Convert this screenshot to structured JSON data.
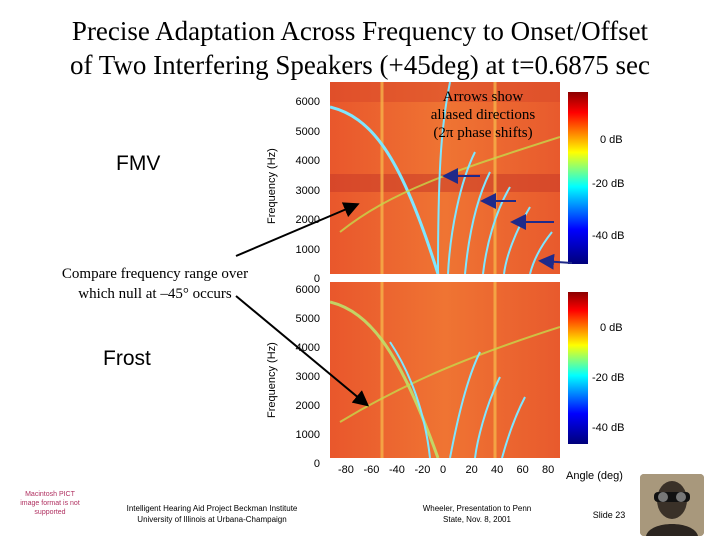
{
  "slide": {
    "title_line1": "Precise Adaptation Across Frequency to Onset/Offset",
    "title_line2": "of Two Interfering Speakers (+45deg) at t=0.6875 sec",
    "fmv_label": "FMV",
    "frost_label": "Frost",
    "compare_note_line1": "Compare frequency range over",
    "compare_note_line2": "which null at –45° occurs",
    "arrows_note_line1": "Arrows show",
    "arrows_note_line2": "aliased directions",
    "arrows_note_line3": "(2π phase shifts)",
    "y_axis_title": "Frequency (Hz)",
    "x_axis_title": "Angle (deg)",
    "y_ticks": [
      "6000",
      "5000",
      "4000",
      "3000",
      "2000",
      "1000",
      "0"
    ],
    "x_ticks": [
      "-80",
      "-60",
      "-40",
      "-20",
      "0",
      "20",
      "40",
      "60",
      "80"
    ],
    "colorbar_ticks": [
      "0 dB",
      "-20 dB",
      "-40 dB"
    ],
    "pict_notice": "Macintosh PICT image format is not supported",
    "footer_left_line1": "Intelligent Hearing Aid Project Beckman Institute",
    "footer_left_line2": "University of Illinois at Urbana-Champaign",
    "footer_mid_line1": "Wheeler, Presentation to Penn",
    "footer_mid_line2": "State, Nov. 8, 2001",
    "slide_number": "Slide 23"
  },
  "colors": {
    "heat_bg": "#e8542a",
    "heat_hot": "#f6a23a",
    "null_cyan": "#7fe6ff",
    "arrow_blue": "#1f2a8a"
  }
}
